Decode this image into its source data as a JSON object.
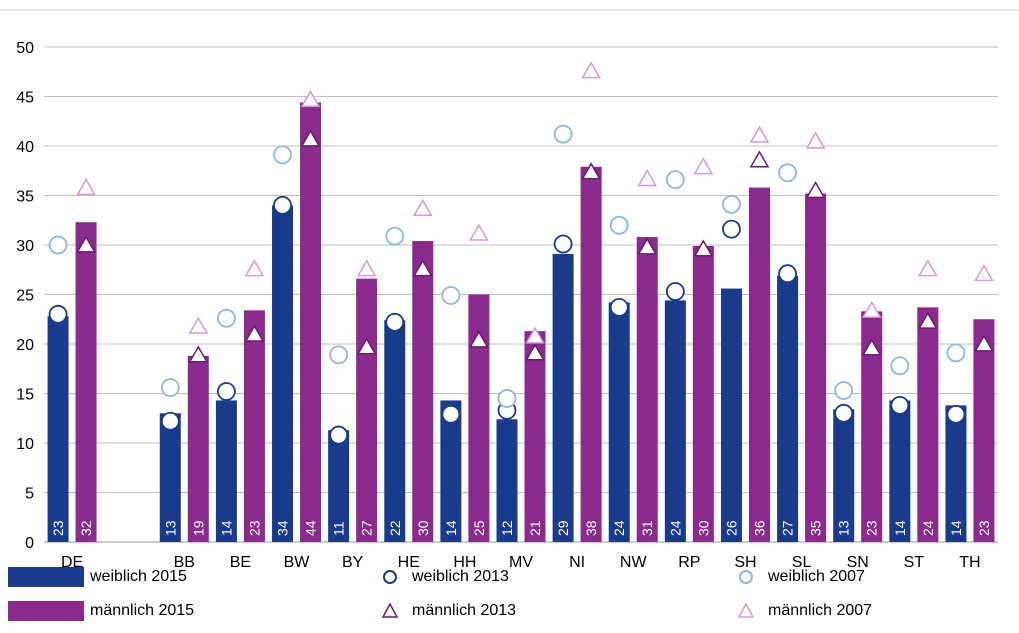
{
  "chart_data": {
    "type": "bar",
    "ylim": [
      0,
      50
    ],
    "yticks": [
      0,
      5,
      10,
      15,
      20,
      25,
      30,
      35,
      40,
      45,
      50
    ],
    "grid": true,
    "legend_position": "bottom",
    "categories": [
      "DE",
      "",
      "BB",
      "BE",
      "BW",
      "BY",
      "HE",
      "HH",
      "MV",
      "NI",
      "NW",
      "RP",
      "SH",
      "SL",
      "SN",
      "ST",
      "TH"
    ],
    "series": [
      {
        "name": "weiblich 2015",
        "kind": "bar",
        "color": "#1a3a8c",
        "values": [
          23,
          null,
          13,
          14,
          34,
          11,
          22,
          14,
          12,
          29,
          24,
          24,
          26,
          27,
          13,
          14,
          14
        ],
        "heights": [
          22.8,
          null,
          13.0,
          14.3,
          34.0,
          11.3,
          22.4,
          14.3,
          12.4,
          29.1,
          24.2,
          24.4,
          25.6,
          26.9,
          13.4,
          14.3,
          13.8
        ],
        "labels": [
          "23",
          "",
          "13",
          "14",
          "34",
          "11",
          "22",
          "14",
          "12",
          "29",
          "24",
          "24",
          "26",
          "27",
          "13",
          "14",
          "14"
        ]
      },
      {
        "name": "männlich 2015",
        "kind": "bar",
        "color": "#8a2a8c",
        "values": [
          32,
          null,
          19,
          23,
          44,
          27,
          30,
          25,
          21,
          38,
          31,
          30,
          36,
          35,
          23,
          24,
          23
        ],
        "heights": [
          32.3,
          null,
          18.8,
          23.4,
          44.4,
          26.6,
          30.4,
          25.0,
          21.3,
          37.9,
          30.8,
          29.9,
          35.8,
          35.2,
          23.3,
          23.7,
          22.5
        ],
        "labels": [
          "32",
          "",
          "19",
          "23",
          "44",
          "27",
          "30",
          "25",
          "21",
          "38",
          "31",
          "30",
          "36",
          "35",
          "23",
          "24",
          "23"
        ]
      },
      {
        "name": "weiblich 2013",
        "kind": "circle",
        "color": "#1a3a8c",
        "values": [
          23.0,
          null,
          12.2,
          15.2,
          34.0,
          10.8,
          22.2,
          12.9,
          13.3,
          30.1,
          23.7,
          25.3,
          31.6,
          27.1,
          13.0,
          13.8,
          12.9
        ]
      },
      {
        "name": "weiblich 2007",
        "kind": "circle",
        "color": "#8fb8dc",
        "values": [
          30.0,
          null,
          15.6,
          22.6,
          39.1,
          18.9,
          30.9,
          24.9,
          14.5,
          41.2,
          32.0,
          36.6,
          34.1,
          37.3,
          15.3,
          17.8,
          19.1
        ]
      },
      {
        "name": "männlich 2013",
        "kind": "triangle",
        "color": "#6a1a70",
        "values": [
          29.9,
          null,
          18.8,
          20.9,
          40.6,
          19.6,
          27.5,
          20.3,
          19.0,
          37.3,
          29.7,
          29.5,
          38.5,
          35.4,
          19.5,
          22.2,
          19.9
        ]
      },
      {
        "name": "männlich 2007",
        "kind": "triangle",
        "color": "#d59ad8",
        "values": [
          35.7,
          null,
          21.7,
          27.5,
          44.6,
          27.5,
          33.6,
          31.1,
          20.7,
          47.5,
          36.6,
          37.8,
          41.0,
          40.4,
          23.3,
          27.5,
          27.0
        ]
      }
    ]
  },
  "legend": [
    {
      "label": "weiblich 2015",
      "kind": "bar",
      "color": "#1a3a8c"
    },
    {
      "label": "weiblich 2013",
      "kind": "circle",
      "color": "#1a3a8c"
    },
    {
      "label": "weiblich 2007",
      "kind": "circle",
      "color": "#8fb8dc"
    },
    {
      "label": "männlich 2015",
      "kind": "bar",
      "color": "#8a2a8c"
    },
    {
      "label": "männlich 2013",
      "kind": "triangle",
      "color": "#6a1a70"
    },
    {
      "label": "männlich 2007",
      "kind": "triangle",
      "color": "#d59ad8"
    }
  ]
}
